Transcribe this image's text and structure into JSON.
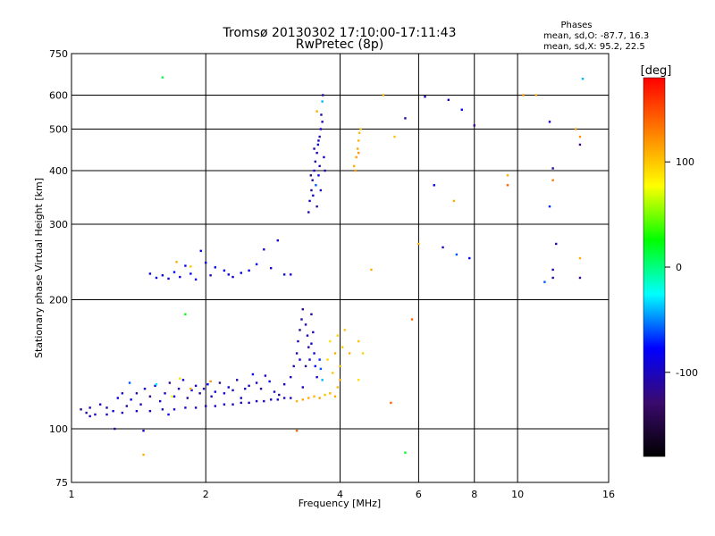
{
  "chart_data": {
    "type": "scatter",
    "title": "Tromsø 20130302 17:10:00-17:11:43",
    "subtitle": "RwPretec (8p)",
    "xlabel": "Frequency [MHz]",
    "ylabel": "Stationary phase Virtual Height [km]",
    "x_scale": "log",
    "y_scale": "log",
    "xlim": [
      1,
      16
    ],
    "ylim": [
      75,
      750
    ],
    "x_ticks": [
      1,
      2,
      4,
      6,
      8,
      10,
      16
    ],
    "y_ticks": [
      75,
      100,
      200,
      300,
      400,
      500,
      600,
      750
    ],
    "grid": true,
    "stats": {
      "heading": "Phases",
      "line_o": "mean, sd,O: -87.7, 16.3",
      "line_x": "mean, sd,X:  95.2, 22.5"
    },
    "colorbar": {
      "label": "[deg]",
      "range": [
        -180,
        180
      ],
      "ticks": [
        100,
        0,
        -100
      ],
      "stops": [
        "#000000",
        "#3b0a6e",
        "#0000ff",
        "#00ffff",
        "#00ff00",
        "#ffff00",
        "#ff7f00",
        "#ff0000"
      ]
    },
    "points": [
      [
        1.05,
        111,
        -110
      ],
      [
        1.08,
        109,
        -115
      ],
      [
        1.1,
        112,
        -105
      ],
      [
        1.13,
        108,
        -100
      ],
      [
        1.16,
        114,
        -95
      ],
      [
        1.2,
        112,
        -110
      ],
      [
        1.24,
        110,
        -90
      ],
      [
        1.27,
        118,
        -80
      ],
      [
        1.3,
        121,
        -95
      ],
      [
        1.33,
        113,
        -105
      ],
      [
        1.36,
        117,
        -85
      ],
      [
        1.4,
        121,
        -110
      ],
      [
        1.43,
        114,
        -100
      ],
      [
        1.46,
        124,
        -90
      ],
      [
        1.5,
        119,
        -120
      ],
      [
        1.54,
        126,
        -85
      ],
      [
        1.58,
        116,
        -105
      ],
      [
        1.62,
        121,
        -95
      ],
      [
        1.66,
        128,
        -110
      ],
      [
        1.7,
        119,
        -80
      ],
      [
        1.74,
        124,
        -100
      ],
      [
        1.78,
        130,
        -95
      ],
      [
        1.82,
        118,
        -115
      ],
      [
        1.86,
        123,
        -85
      ],
      [
        1.9,
        126,
        -100
      ],
      [
        1.94,
        121,
        -110
      ],
      [
        1.98,
        124,
        -95
      ],
      [
        2.02,
        127,
        -80
      ],
      [
        2.06,
        119,
        -105
      ],
      [
        2.1,
        122,
        -90
      ],
      [
        2.15,
        128,
        -115
      ],
      [
        2.2,
        121,
        -95
      ],
      [
        2.25,
        125,
        -85
      ],
      [
        2.3,
        123,
        -100
      ],
      [
        2.35,
        130,
        -110
      ],
      [
        2.4,
        118,
        -90
      ],
      [
        2.45,
        124,
        -95
      ],
      [
        2.5,
        126,
        -105
      ],
      [
        2.55,
        134,
        -80
      ],
      [
        2.6,
        128,
        -100
      ],
      [
        2.66,
        124,
        -110
      ],
      [
        2.72,
        133,
        -95
      ],
      [
        2.78,
        129,
        -85
      ],
      [
        2.85,
        122,
        -100
      ],
      [
        2.92,
        120,
        -115
      ],
      [
        3.0,
        127,
        -95
      ],
      [
        1.1,
        107,
        -100
      ],
      [
        1.2,
        108,
        -98
      ],
      [
        1.3,
        109,
        -102
      ],
      [
        1.4,
        110,
        -97
      ],
      [
        1.5,
        110,
        -100
      ],
      [
        1.6,
        111,
        -103
      ],
      [
        1.7,
        111,
        -99
      ],
      [
        1.8,
        112,
        -101
      ],
      [
        1.9,
        112,
        -104
      ],
      [
        2.0,
        113,
        -100
      ],
      [
        2.1,
        113,
        -98
      ],
      [
        2.2,
        114,
        -102
      ],
      [
        2.3,
        114,
        -100
      ],
      [
        2.4,
        115,
        -97
      ],
      [
        2.5,
        115,
        -101
      ],
      [
        2.6,
        116,
        -99
      ],
      [
        2.7,
        116,
        -103
      ],
      [
        2.8,
        117,
        -100
      ],
      [
        2.9,
        117,
        -98
      ],
      [
        3.0,
        118,
        -102
      ],
      [
        3.1,
        118,
        -100
      ],
      [
        1.25,
        100,
        -110
      ],
      [
        1.45,
        99,
        -95
      ],
      [
        1.65,
        108,
        -85
      ],
      [
        1.35,
        128,
        -60
      ],
      [
        1.55,
        127,
        -30
      ],
      [
        1.75,
        131,
        90
      ],
      [
        1.85,
        124,
        110
      ],
      [
        2.05,
        129,
        120
      ],
      [
        1.68,
        119,
        80
      ],
      [
        3.1,
        132,
        -100
      ],
      [
        3.15,
        140,
        -110
      ],
      [
        3.2,
        150,
        -105
      ],
      [
        3.22,
        160,
        -100
      ],
      [
        3.25,
        170,
        -115
      ],
      [
        3.28,
        180,
        -110
      ],
      [
        3.3,
        190,
        -120
      ],
      [
        3.35,
        175,
        -105
      ],
      [
        3.38,
        165,
        -100
      ],
      [
        3.4,
        155,
        -110
      ],
      [
        3.42,
        145,
        -95
      ],
      [
        3.45,
        158,
        -90
      ],
      [
        3.48,
        168,
        -100
      ],
      [
        3.5,
        150,
        -85
      ],
      [
        3.52,
        140,
        -80
      ],
      [
        3.55,
        132,
        -95
      ],
      [
        3.6,
        145,
        -70
      ],
      [
        3.62,
        138,
        -60
      ],
      [
        3.65,
        130,
        -40
      ],
      [
        3.3,
        125,
        -100
      ],
      [
        3.35,
        140,
        -115
      ],
      [
        3.45,
        185,
        -110
      ],
      [
        3.25,
        145,
        -95
      ],
      [
        3.4,
        118,
        110
      ],
      [
        3.5,
        119,
        105
      ],
      [
        3.6,
        118,
        115
      ],
      [
        3.7,
        120,
        100
      ],
      [
        3.8,
        121,
        108
      ],
      [
        3.9,
        119,
        112
      ],
      [
        3.95,
        125,
        105
      ],
      [
        4.0,
        130,
        110
      ],
      [
        3.85,
        135,
        100
      ],
      [
        3.75,
        145,
        95
      ],
      [
        3.9,
        150,
        110
      ],
      [
        4.0,
        140,
        105
      ],
      [
        4.05,
        155,
        100
      ],
      [
        3.8,
        160,
        90
      ],
      [
        3.95,
        165,
        95
      ],
      [
        4.1,
        170,
        100
      ],
      [
        4.4,
        160,
        100
      ],
      [
        4.5,
        150,
        95
      ],
      [
        4.4,
        130,
        90
      ],
      [
        3.2,
        116,
        108
      ],
      [
        3.3,
        117,
        112
      ],
      [
        3.4,
        320,
        -110
      ],
      [
        3.42,
        340,
        -100
      ],
      [
        3.45,
        360,
        -115
      ],
      [
        3.47,
        380,
        -105
      ],
      [
        3.5,
        400,
        -95
      ],
      [
        3.52,
        420,
        -110
      ],
      [
        3.55,
        440,
        -100
      ],
      [
        3.57,
        460,
        -90
      ],
      [
        3.6,
        480,
        -105
      ],
      [
        3.62,
        500,
        -95
      ],
      [
        3.65,
        520,
        -100
      ],
      [
        3.63,
        540,
        -110
      ],
      [
        3.48,
        350,
        -90
      ],
      [
        3.53,
        370,
        -60
      ],
      [
        3.58,
        390,
        -80
      ],
      [
        3.6,
        410,
        -100
      ],
      [
        3.55,
        330,
        -115
      ],
      [
        3.5,
        450,
        -105
      ],
      [
        3.58,
        470,
        -95
      ],
      [
        3.68,
        430,
        -100
      ],
      [
        3.7,
        400,
        -110
      ],
      [
        3.44,
        390,
        -120
      ],
      [
        3.62,
        360,
        -100
      ],
      [
        3.66,
        600,
        -110
      ],
      [
        3.65,
        580,
        -40
      ],
      [
        3.55,
        550,
        110
      ],
      [
        4.3,
        410,
        110
      ],
      [
        4.35,
        430,
        115
      ],
      [
        4.38,
        450,
        112
      ],
      [
        4.4,
        470,
        108
      ],
      [
        4.42,
        490,
        105
      ],
      [
        4.45,
        500,
        100
      ],
      [
        4.33,
        400,
        118
      ],
      [
        4.4,
        440,
        120
      ],
      [
        1.5,
        230,
        -85
      ],
      [
        1.55,
        225,
        -90
      ],
      [
        1.6,
        228,
        -80
      ],
      [
        1.65,
        224,
        -95
      ],
      [
        1.7,
        232,
        -75
      ],
      [
        1.75,
        226,
        -90
      ],
      [
        1.8,
        240,
        -85
      ],
      [
        1.85,
        230,
        -80
      ],
      [
        1.9,
        223,
        -95
      ],
      [
        1.95,
        260,
        -90
      ],
      [
        2.0,
        244,
        -85
      ],
      [
        2.05,
        228,
        -100
      ],
      [
        2.1,
        238,
        -80
      ],
      [
        2.2,
        234,
        -90
      ],
      [
        2.25,
        229,
        -85
      ],
      [
        2.3,
        226,
        -95
      ],
      [
        2.4,
        231,
        -80
      ],
      [
        2.5,
        234,
        -90
      ],
      [
        2.6,
        242,
        -85
      ],
      [
        2.7,
        262,
        -100
      ],
      [
        2.8,
        237,
        -95
      ],
      [
        2.9,
        275,
        -100
      ],
      [
        3.0,
        229,
        -90
      ],
      [
        3.1,
        229,
        -95
      ],
      [
        1.72,
        245,
        110
      ],
      [
        1.85,
        239,
        100
      ],
      [
        5.0,
        600,
        110
      ],
      [
        5.3,
        480,
        100
      ],
      [
        5.6,
        530,
        -110
      ],
      [
        6.2,
        595,
        -100
      ],
      [
        6.5,
        370,
        -80
      ],
      [
        7.0,
        585,
        -90
      ],
      [
        7.2,
        340,
        110
      ],
      [
        7.5,
        555,
        -80
      ],
      [
        8.0,
        510,
        -120
      ],
      [
        9.5,
        390,
        110
      ],
      [
        11.0,
        600,
        110
      ],
      [
        11.8,
        520,
        -95
      ],
      [
        11.8,
        330,
        -70
      ],
      [
        12.0,
        380,
        130
      ],
      [
        12.0,
        405,
        -110
      ],
      [
        12.2,
        270,
        -110
      ],
      [
        13.5,
        500,
        115
      ],
      [
        13.8,
        480,
        120
      ],
      [
        14.0,
        655,
        -40
      ],
      [
        13.8,
        460,
        -120
      ],
      [
        6.0,
        270,
        110
      ],
      [
        6.8,
        265,
        -100
      ],
      [
        7.3,
        255,
        -60
      ],
      [
        7.8,
        250,
        -80
      ],
      [
        5.8,
        180,
        140
      ],
      [
        5.2,
        115,
        140
      ],
      [
        4.7,
        235,
        110
      ],
      [
        4.2,
        150,
        110
      ],
      [
        3.2,
        99,
        140
      ],
      [
        1.45,
        87,
        110
      ],
      [
        5.6,
        88,
        20
      ],
      [
        1.6,
        660,
        10
      ],
      [
        1.8,
        185,
        20
      ],
      [
        11.5,
        220,
        -60
      ],
      [
        12.0,
        235,
        -100
      ],
      [
        12.0,
        225,
        -110
      ],
      [
        13.8,
        225,
        -120
      ],
      [
        13.8,
        250,
        110
      ],
      [
        9.5,
        370,
        140
      ],
      [
        10.3,
        600,
        120
      ]
    ]
  }
}
